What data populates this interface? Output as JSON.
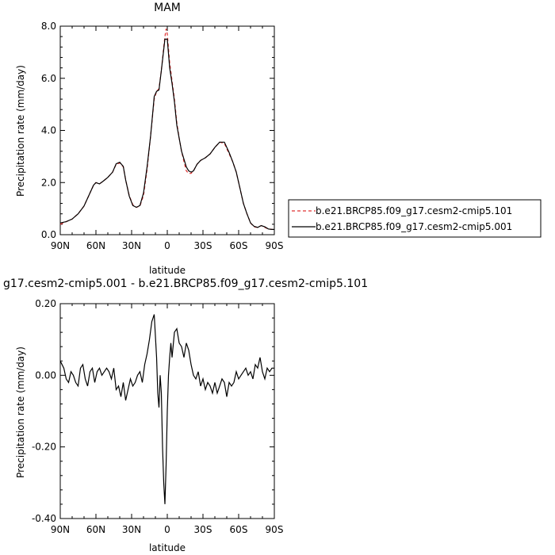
{
  "chart_data": [
    {
      "type": "line",
      "title": "MAM",
      "xlabel": "latitude",
      "ylabel": "Precipitation rate  (mm/day)",
      "xlim": [
        90,
        -90
      ],
      "ylim": [
        0,
        8
      ],
      "x_ticks": [
        90,
        60,
        30,
        0,
        -30,
        -60,
        -90
      ],
      "x_tick_labels": [
        "90N",
        "60N",
        "30N",
        "0",
        "30S",
        "60S",
        "90S"
      ],
      "y_ticks": [
        0,
        2,
        4,
        6,
        8
      ],
      "y_tick_labels": [
        "0.0",
        "2.0",
        "4.0",
        "6.0",
        "8.0"
      ],
      "legend_placement": "outside-right",
      "series": [
        {
          "name": "b.e21.BRCP85.f09_g17.cesm2-cmip5.101",
          "color": "#e03030",
          "dash": "dashed",
          "x": [
            90,
            85,
            80,
            75,
            70,
            65,
            62,
            60,
            57,
            54,
            50,
            46,
            43,
            40,
            37,
            35,
            32,
            29,
            26,
            23,
            20,
            17,
            14,
            11,
            9,
            7,
            5,
            3,
            2,
            1,
            0,
            -2,
            -4,
            -6,
            -8,
            -10,
            -12,
            -14,
            -16,
            -18,
            -20,
            -22,
            -25,
            -28,
            -32,
            -36,
            -40,
            -44,
            -48,
            -52,
            -55,
            -58,
            -61,
            -64,
            -67,
            -70,
            -73,
            -76,
            -79,
            -82,
            -85,
            -88,
            -90
          ],
          "y": [
            0.4,
            0.5,
            0.6,
            0.8,
            1.1,
            1.6,
            1.9,
            2.0,
            1.95,
            2.05,
            2.2,
            2.4,
            2.7,
            2.75,
            2.6,
            2.1,
            1.5,
            1.15,
            1.05,
            1.1,
            1.5,
            2.5,
            3.8,
            5.2,
            5.5,
            5.6,
            6.3,
            7.2,
            7.6,
            7.9,
            7.7,
            6.6,
            5.9,
            5.2,
            4.3,
            3.7,
            3.2,
            2.8,
            2.45,
            2.35,
            2.35,
            2.45,
            2.7,
            2.85,
            2.95,
            3.1,
            3.35,
            3.55,
            3.5,
            3.1,
            2.8,
            2.4,
            1.8,
            1.2,
            0.8,
            0.45,
            0.3,
            0.28,
            0.35,
            0.28,
            0.22,
            0.2,
            0.2
          ]
        },
        {
          "name": "b.e21.BRCP85.f09_g17.cesm2-cmip5.001",
          "color": "#000000",
          "dash": "solid",
          "x": [
            90,
            85,
            80,
            75,
            70,
            65,
            62,
            60,
            57,
            54,
            50,
            46,
            43,
            40,
            37,
            35,
            32,
            29,
            26,
            23,
            20,
            17,
            14,
            11,
            9,
            7,
            5,
            3,
            2,
            1,
            0,
            -2,
            -4,
            -6,
            -8,
            -10,
            -12,
            -14,
            -16,
            -18,
            -20,
            -22,
            -25,
            -28,
            -32,
            -36,
            -40,
            -44,
            -48,
            -52,
            -55,
            -58,
            -61,
            -64,
            -67,
            -70,
            -73,
            -76,
            -79,
            -82,
            -85,
            -88,
            -90
          ],
          "y": [
            0.45,
            0.5,
            0.6,
            0.8,
            1.1,
            1.6,
            1.9,
            2.0,
            1.95,
            2.05,
            2.2,
            2.4,
            2.72,
            2.78,
            2.62,
            2.1,
            1.48,
            1.12,
            1.05,
            1.12,
            1.6,
            2.6,
            3.8,
            5.3,
            5.5,
            5.55,
            6.3,
            7.1,
            7.5,
            7.5,
            7.5,
            6.4,
            5.8,
            5.1,
            4.2,
            3.7,
            3.2,
            2.9,
            2.6,
            2.45,
            2.4,
            2.45,
            2.7,
            2.85,
            2.95,
            3.1,
            3.35,
            3.55,
            3.55,
            3.15,
            2.8,
            2.4,
            1.8,
            1.2,
            0.8,
            0.45,
            0.32,
            0.28,
            0.35,
            0.3,
            0.22,
            0.2,
            0.2
          ]
        }
      ]
    },
    {
      "type": "line",
      "title": "g17.cesm2-cmip5.001 - b.e21.BRCP85.f09_g17.cesm2-cmip5.101",
      "xlabel": "latitude",
      "ylabel": "Precipitation rate  (mm/day)",
      "xlim": [
        90,
        -90
      ],
      "ylim": [
        -0.4,
        0.2
      ],
      "x_ticks": [
        90,
        60,
        30,
        0,
        -30,
        -60,
        -90
      ],
      "x_tick_labels": [
        "90N",
        "60N",
        "30N",
        "0",
        "30S",
        "60S",
        "90S"
      ],
      "y_ticks": [
        -0.4,
        -0.2,
        0,
        0.2
      ],
      "y_tick_labels": [
        "-0.40",
        "-0.20",
        "0.00",
        "0.20"
      ],
      "series": [
        {
          "color": "#000000",
          "dash": "solid",
          "x": [
            90,
            87,
            85,
            83,
            81,
            79,
            77,
            75,
            73,
            71,
            69,
            67,
            65,
            63,
            61,
            59,
            57,
            55,
            53,
            51,
            49,
            47,
            45,
            43,
            41,
            39,
            37,
            35,
            33,
            31,
            29,
            27,
            25,
            23,
            21,
            19,
            17,
            15,
            13,
            11,
            9,
            8,
            7,
            6,
            5,
            4,
            3,
            2,
            1,
            0,
            -1,
            -2,
            -3,
            -4,
            -6,
            -8,
            -10,
            -12,
            -14,
            -16,
            -18,
            -20,
            -22,
            -24,
            -26,
            -28,
            -30,
            -32,
            -34,
            -36,
            -38,
            -40,
            -42,
            -44,
            -46,
            -48,
            -50,
            -52,
            -54,
            -56,
            -58,
            -60,
            -62,
            -64,
            -66,
            -68,
            -70,
            -72,
            -74,
            -76,
            -78,
            -80,
            -82,
            -84,
            -86,
            -88,
            -90
          ],
          "y": [
            0.04,
            0.02,
            -0.01,
            -0.02,
            0.01,
            0.0,
            -0.02,
            -0.03,
            0.02,
            0.03,
            -0.01,
            -0.03,
            0.01,
            0.02,
            -0.02,
            0.01,
            0.02,
            0.0,
            0.01,
            0.02,
            0.01,
            -0.01,
            0.02,
            -0.04,
            -0.03,
            -0.06,
            -0.02,
            -0.07,
            -0.04,
            -0.01,
            -0.03,
            -0.02,
            0.0,
            0.01,
            -0.02,
            0.03,
            0.06,
            0.1,
            0.15,
            0.17,
            0.05,
            -0.05,
            -0.09,
            0.0,
            -0.05,
            -0.2,
            -0.3,
            -0.36,
            -0.25,
            -0.1,
            0.0,
            0.05,
            0.09,
            0.05,
            0.12,
            0.13,
            0.09,
            0.08,
            0.05,
            0.09,
            0.07,
            0.03,
            0.0,
            -0.01,
            0.01,
            -0.03,
            -0.01,
            -0.04,
            -0.02,
            -0.03,
            -0.05,
            -0.02,
            -0.05,
            -0.03,
            -0.01,
            -0.02,
            -0.06,
            -0.02,
            -0.03,
            -0.02,
            0.01,
            -0.01,
            0.0,
            0.01,
            0.02,
            0.0,
            0.01,
            -0.01,
            0.03,
            0.02,
            0.05,
            0.01,
            -0.01,
            0.02,
            0.01,
            0.02,
            0.02
          ]
        }
      ]
    }
  ]
}
